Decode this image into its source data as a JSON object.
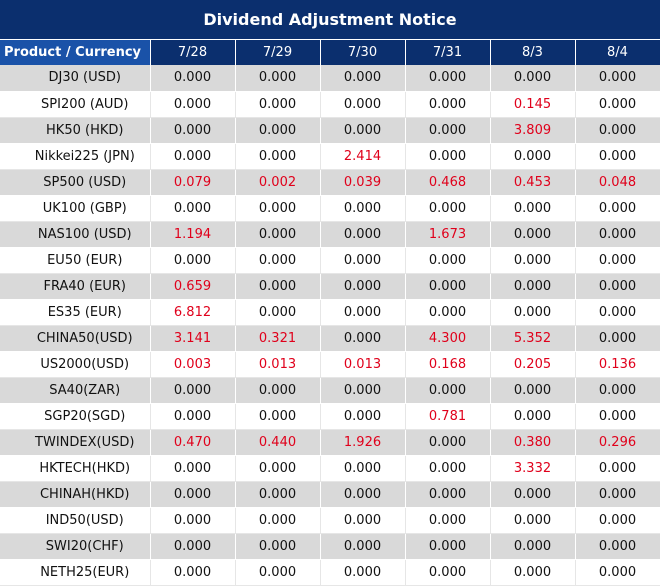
{
  "title": "Dividend Adjustment Notice",
  "header": {
    "product_label": "Product / Currency",
    "dates": [
      "7/28",
      "7/29",
      "7/30",
      "7/31",
      "8/3",
      "8/4"
    ]
  },
  "colors": {
    "header_bg": "#0b2f6e",
    "shaded_row": "#d9d9d9",
    "highlight_value": "#e0001b"
  },
  "rows": [
    {
      "name": "DJ30 (USD)",
      "values": [
        "0.000",
        "0.000",
        "0.000",
        "0.000",
        "0.000",
        "0.000"
      ]
    },
    {
      "name": "SPI200 (AUD)",
      "values": [
        "0.000",
        "0.000",
        "0.000",
        "0.000",
        "0.145",
        "0.000"
      ]
    },
    {
      "name": "HK50 (HKD)",
      "values": [
        "0.000",
        "0.000",
        "0.000",
        "0.000",
        "3.809",
        "0.000"
      ]
    },
    {
      "name": "Nikkei225 (JPN)",
      "values": [
        "0.000",
        "0.000",
        "2.414",
        "0.000",
        "0.000",
        "0.000"
      ]
    },
    {
      "name": "SP500 (USD)",
      "values": [
        "0.079",
        "0.002",
        "0.039",
        "0.468",
        "0.453",
        "0.048"
      ]
    },
    {
      "name": "UK100 (GBP)",
      "values": [
        "0.000",
        "0.000",
        "0.000",
        "0.000",
        "0.000",
        "0.000"
      ]
    },
    {
      "name": "NAS100 (USD)",
      "values": [
        "1.194",
        "0.000",
        "0.000",
        "1.673",
        "0.000",
        "0.000"
      ]
    },
    {
      "name": "EU50 (EUR)",
      "values": [
        "0.000",
        "0.000",
        "0.000",
        "0.000",
        "0.000",
        "0.000"
      ]
    },
    {
      "name": "FRA40 (EUR)",
      "values": [
        "0.659",
        "0.000",
        "0.000",
        "0.000",
        "0.000",
        "0.000"
      ]
    },
    {
      "name": "ES35 (EUR)",
      "values": [
        "6.812",
        "0.000",
        "0.000",
        "0.000",
        "0.000",
        "0.000"
      ]
    },
    {
      "name": "CHINA50(USD)",
      "values": [
        "3.141",
        "0.321",
        "0.000",
        "4.300",
        "5.352",
        "0.000"
      ]
    },
    {
      "name": "US2000(USD)",
      "values": [
        "0.003",
        "0.013",
        "0.013",
        "0.168",
        "0.205",
        "0.136"
      ]
    },
    {
      "name": "SA40(ZAR)",
      "values": [
        "0.000",
        "0.000",
        "0.000",
        "0.000",
        "0.000",
        "0.000"
      ]
    },
    {
      "name": "SGP20(SGD)",
      "values": [
        "0.000",
        "0.000",
        "0.000",
        "0.781",
        "0.000",
        "0.000"
      ]
    },
    {
      "name": "TWINDEX(USD)",
      "values": [
        "0.470",
        "0.440",
        "1.926",
        "0.000",
        "0.380",
        "0.296"
      ]
    },
    {
      "name": "HKTECH(HKD)",
      "values": [
        "0.000",
        "0.000",
        "0.000",
        "0.000",
        "3.332",
        "0.000"
      ]
    },
    {
      "name": "CHINAH(HKD)",
      "values": [
        "0.000",
        "0.000",
        "0.000",
        "0.000",
        "0.000",
        "0.000"
      ]
    },
    {
      "name": "IND50(USD)",
      "values": [
        "0.000",
        "0.000",
        "0.000",
        "0.000",
        "0.000",
        "0.000"
      ]
    },
    {
      "name": "SWI20(CHF)",
      "values": [
        "0.000",
        "0.000",
        "0.000",
        "0.000",
        "0.000",
        "0.000"
      ]
    },
    {
      "name": "NETH25(EUR)",
      "values": [
        "0.000",
        "0.000",
        "0.000",
        "0.000",
        "0.000",
        "0.000"
      ]
    }
  ]
}
